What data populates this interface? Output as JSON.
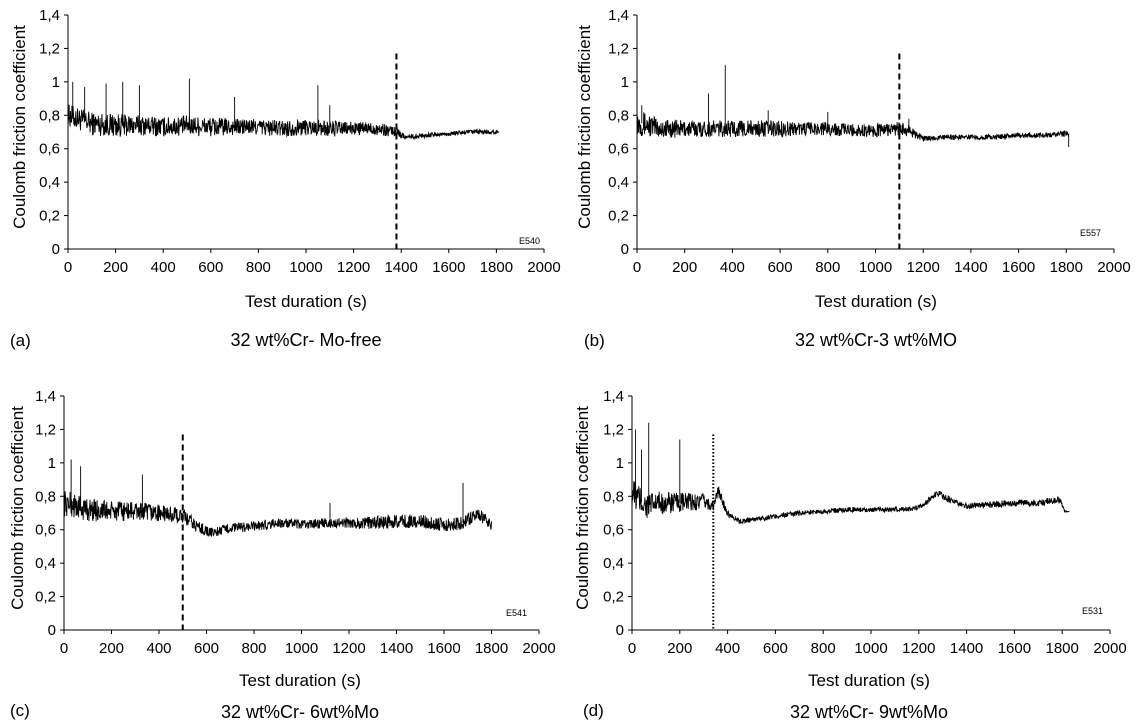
{
  "chart_data": [
    {
      "panel": "(a)",
      "caption": "32 wt%Cr- Mo-free",
      "sample_code": "E540",
      "type": "line",
      "xlabel": "Test duration (s)",
      "ylabel": "Coulomb friction coefficient",
      "xlim": [
        0,
        2000
      ],
      "ylim": [
        0,
        1.4
      ],
      "xticks": [
        "0",
        "200",
        "400",
        "600",
        "800",
        "1000",
        "1200",
        "1400",
        "1600",
        "1800",
        "2000"
      ],
      "yticks": [
        "0",
        "0,2",
        "0,4",
        "0,6",
        "0,8",
        "1",
        "1,2",
        "1,4"
      ],
      "grid": false,
      "transition_line": {
        "x": 1380,
        "style": "dashed"
      },
      "series": [
        {
          "x": [
            0,
            100,
            200,
            300,
            400,
            500,
            600,
            700,
            800,
            900,
            1000,
            1100,
            1200,
            1300,
            1380,
            1420,
            1500,
            1600,
            1700,
            1810
          ],
          "y": [
            0.8,
            0.75,
            0.74,
            0.74,
            0.73,
            0.74,
            0.73,
            0.73,
            0.73,
            0.72,
            0.73,
            0.72,
            0.72,
            0.72,
            0.7,
            0.67,
            0.68,
            0.69,
            0.7,
            0.7
          ],
          "noise": [
            0.07,
            0.07,
            0.07,
            0.06,
            0.06,
            0.06,
            0.06,
            0.05,
            0.05,
            0.05,
            0.05,
            0.05,
            0.04,
            0.04,
            0.03,
            0.015,
            0.015,
            0.015,
            0.015,
            0.015
          ],
          "peaks": [
            [
              20,
              1.0
            ],
            [
              70,
              0.97
            ],
            [
              160,
              0.99
            ],
            [
              230,
              1.0
            ],
            [
              300,
              0.98
            ],
            [
              510,
              1.02
            ],
            [
              700,
              0.91
            ],
            [
              1050,
              0.98
            ],
            [
              1100,
              0.86
            ]
          ]
        }
      ]
    },
    {
      "panel": "(b)",
      "caption": "32 wt%Cr-3 wt%MO",
      "sample_code": "E557",
      "type": "line",
      "xlabel": "Test duration (s)",
      "ylabel": "Coulomb friction coefficient",
      "xlim": [
        0,
        2000
      ],
      "ylim": [
        0,
        1.4
      ],
      "xticks": [
        "0",
        "200",
        "400",
        "600",
        "800",
        "1000",
        "1200",
        "1400",
        "1600",
        "1800",
        "2000"
      ],
      "yticks": [
        "0",
        "0,2",
        "0,4",
        "0,6",
        "0,8",
        "1",
        "1,2",
        "1,4"
      ],
      "grid": false,
      "transition_line": {
        "x": 1100,
        "style": "dashed"
      },
      "series": [
        {
          "x": [
            0,
            100,
            200,
            300,
            400,
            500,
            600,
            700,
            800,
            900,
            1000,
            1100,
            1150,
            1200,
            1300,
            1400,
            1500,
            1600,
            1700,
            1810
          ],
          "y": [
            0.76,
            0.72,
            0.72,
            0.72,
            0.72,
            0.72,
            0.72,
            0.72,
            0.72,
            0.71,
            0.71,
            0.72,
            0.7,
            0.66,
            0.67,
            0.67,
            0.67,
            0.68,
            0.68,
            0.69
          ],
          "noise": [
            0.08,
            0.06,
            0.05,
            0.05,
            0.05,
            0.05,
            0.05,
            0.04,
            0.04,
            0.04,
            0.04,
            0.04,
            0.03,
            0.015,
            0.015,
            0.015,
            0.015,
            0.015,
            0.015,
            0.02
          ],
          "peaks": [
            [
              20,
              0.86
            ],
            [
              300,
              0.93
            ],
            [
              370,
              1.1
            ],
            [
              550,
              0.83
            ],
            [
              800,
              0.82
            ],
            [
              1140,
              0.78
            ],
            [
              1810,
              0.61
            ]
          ]
        }
      ]
    },
    {
      "panel": "(c)",
      "caption": "32 wt%Cr- 6wt%Mo",
      "sample_code": "E541",
      "type": "line",
      "xlabel": "Test duration (s)",
      "ylabel": "Coulomb friction coefficient",
      "xlim": [
        0,
        2000
      ],
      "ylim": [
        0,
        1.4
      ],
      "xticks": [
        "0",
        "200",
        "400",
        "600",
        "800",
        "1000",
        "1200",
        "1400",
        "1600",
        "1800",
        "2000"
      ],
      "yticks": [
        "0",
        "0,2",
        "0,4",
        "0,6",
        "0,8",
        "1",
        "1,2",
        "1,4"
      ],
      "grid": false,
      "transition_line": {
        "x": 500,
        "style": "dashed"
      },
      "series": [
        {
          "x": [
            0,
            100,
            200,
            300,
            400,
            500,
            560,
            620,
            700,
            800,
            900,
            1000,
            1100,
            1200,
            1300,
            1400,
            1500,
            1600,
            1680,
            1740,
            1800
          ],
          "y": [
            0.76,
            0.72,
            0.71,
            0.71,
            0.7,
            0.68,
            0.62,
            0.58,
            0.61,
            0.62,
            0.64,
            0.63,
            0.64,
            0.64,
            0.64,
            0.65,
            0.65,
            0.63,
            0.64,
            0.7,
            0.63
          ],
          "noise": [
            0.08,
            0.07,
            0.06,
            0.06,
            0.05,
            0.05,
            0.04,
            0.03,
            0.03,
            0.03,
            0.03,
            0.03,
            0.03,
            0.03,
            0.04,
            0.04,
            0.04,
            0.04,
            0.04,
            0.04,
            0.03
          ],
          "peaks": [
            [
              30,
              1.02
            ],
            [
              70,
              0.98
            ],
            [
              330,
              0.93
            ],
            [
              1120,
              0.76
            ],
            [
              1680,
              0.88
            ]
          ]
        }
      ]
    },
    {
      "panel": "(d)",
      "caption": "32 wt%Cr- 9wt%Mo",
      "sample_code": "E531",
      "type": "line",
      "xlabel": "Test duration (s)",
      "ylabel": "Coulomb friction coefficient",
      "xlim": [
        0,
        2000
      ],
      "ylim": [
        0,
        1.4
      ],
      "xticks": [
        "0",
        "200",
        "400",
        "600",
        "800",
        "1000",
        "1200",
        "1400",
        "1600",
        "1800",
        "2000"
      ],
      "yticks": [
        "0",
        "0,2",
        "0,4",
        "0,6",
        "0,8",
        "1",
        "1,2",
        "1,4"
      ],
      "grid": false,
      "transition_line": {
        "x": 340,
        "style": "dotted"
      },
      "series": [
        {
          "x": [
            0,
            60,
            120,
            200,
            300,
            340,
            360,
            400,
            450,
            500,
            600,
            700,
            800,
            900,
            1000,
            1100,
            1200,
            1280,
            1350,
            1400,
            1500,
            1600,
            1700,
            1790,
            1810,
            1830
          ],
          "y": [
            0.82,
            0.74,
            0.76,
            0.76,
            0.77,
            0.74,
            0.83,
            0.7,
            0.65,
            0.66,
            0.68,
            0.7,
            0.71,
            0.72,
            0.72,
            0.72,
            0.73,
            0.82,
            0.76,
            0.74,
            0.75,
            0.76,
            0.76,
            0.78,
            0.71,
            0.71
          ],
          "noise": [
            0.1,
            0.08,
            0.07,
            0.06,
            0.05,
            0.03,
            0.04,
            0.02,
            0.015,
            0.015,
            0.015,
            0.015,
            0.015,
            0.015,
            0.015,
            0.015,
            0.015,
            0.02,
            0.02,
            0.02,
            0.02,
            0.02,
            0.02,
            0.02,
            0.005,
            0.005
          ],
          "peaks": [
            [
              15,
              1.2
            ],
            [
              40,
              1.08
            ],
            [
              70,
              1.24
            ],
            [
              200,
              1.14
            ]
          ]
        }
      ]
    }
  ]
}
